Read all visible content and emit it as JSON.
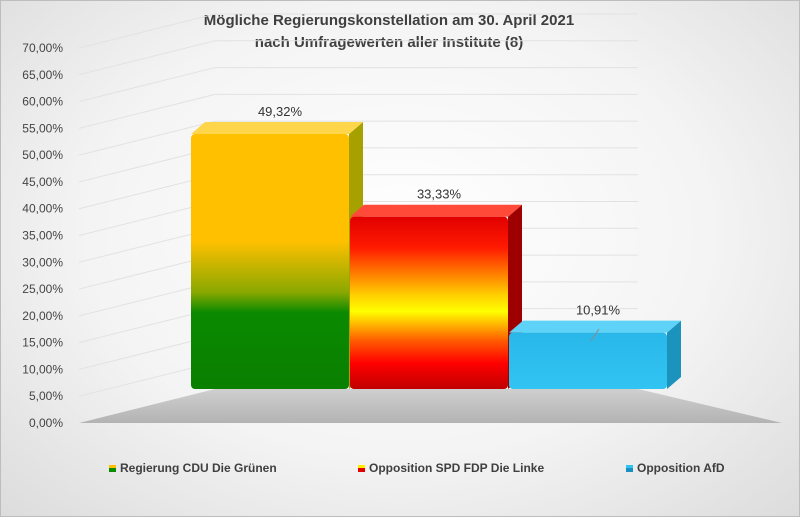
{
  "chart_data": {
    "type": "bar",
    "title_lines": [
      "Mögliche Regierungskonstellation am 30. April 2021",
      "nach Umfragewerten aller Institute (8)"
    ],
    "xlabel": "",
    "ylabel": "",
    "ylim": [
      0,
      70
    ],
    "ytick_labels": [
      "0,00%",
      "5,00%",
      "10,00%",
      "15,00%",
      "20,00%",
      "25,00%",
      "30,00%",
      "35,00%",
      "40,00%",
      "45,00%",
      "50,00%",
      "55,00%",
      "60,00%",
      "65,00%",
      "70,00%"
    ],
    "categories": [
      "Regierung CDU Die Grünen",
      "Opposition SPD FDP Die Linke",
      "Opposition AfD"
    ],
    "values": [
      49.32,
      33.33,
      10.91
    ],
    "data_labels": [
      "49,32%",
      "33,33%",
      "10,91%"
    ],
    "colors": [
      [
        "#ffc000",
        "#ffc000",
        "#008a00"
      ],
      [
        "#c00000",
        "#ff0000",
        "#ffff00",
        "#ff0000",
        "#c00000"
      ],
      [
        "#2dbfef",
        "#2dbfef"
      ]
    ],
    "grid": true,
    "legend_position": "bottom"
  }
}
